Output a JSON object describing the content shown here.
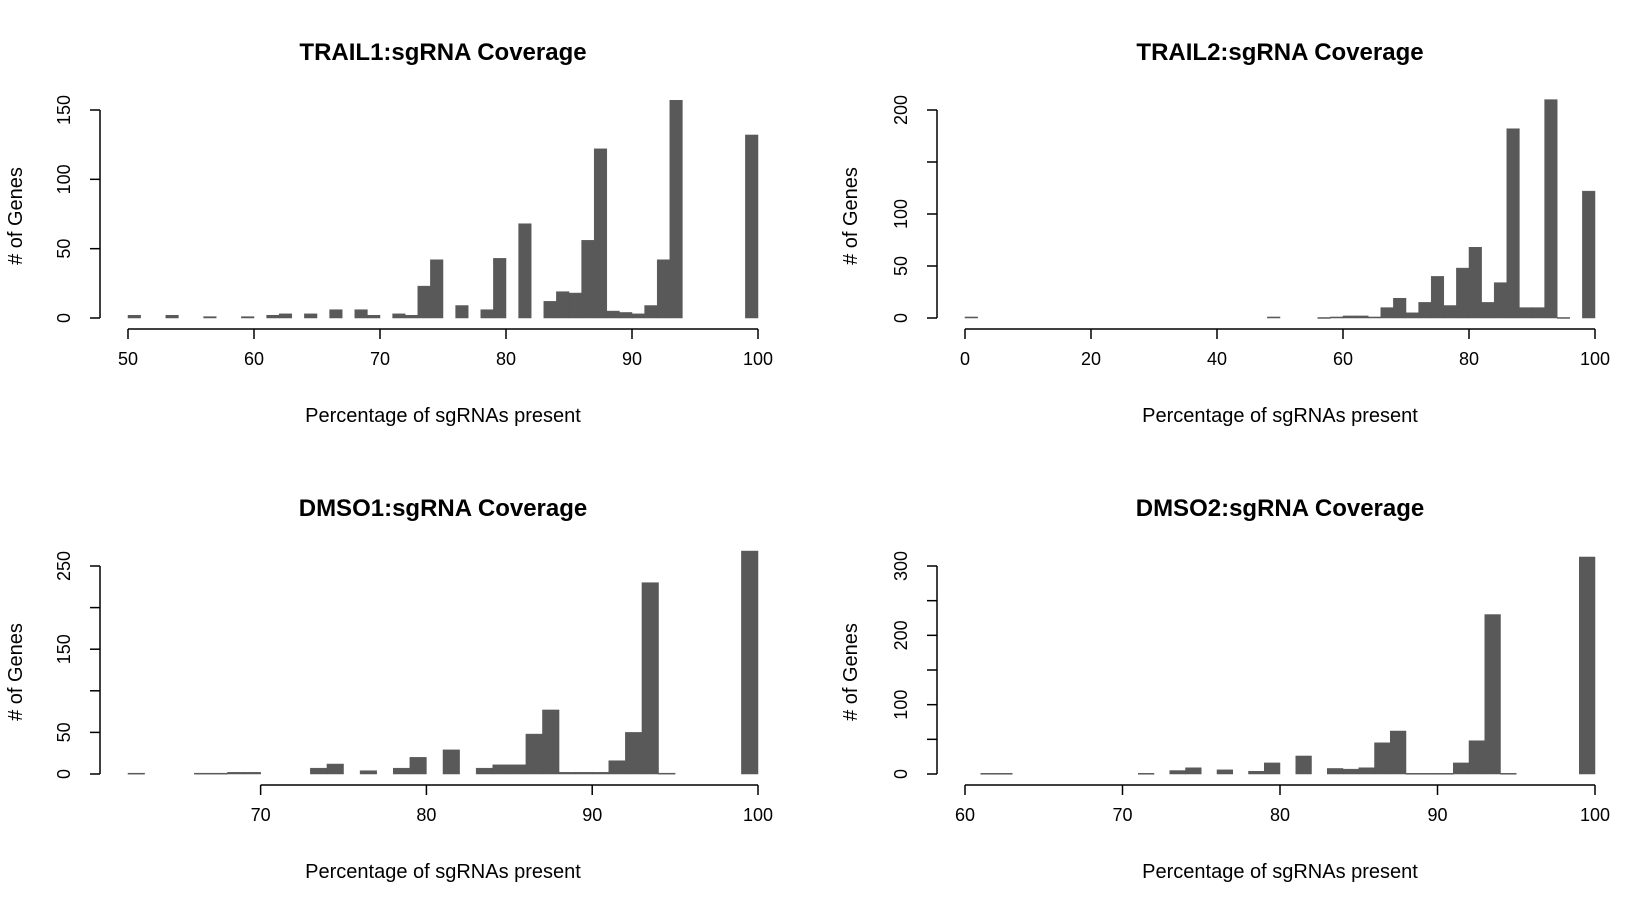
{
  "chart_data": [
    {
      "type": "bar",
      "title": "TRAIL1:sgRNA Coverage",
      "xlabel": "Percentage of sgRNAs present",
      "ylabel": "# of Genes",
      "xlim": [
        50,
        100
      ],
      "ylim": [
        0,
        150
      ],
      "xticks": [
        50,
        60,
        70,
        80,
        90,
        100
      ],
      "yticks": [
        0,
        50,
        100,
        150
      ],
      "bars": [
        {
          "x0": 50.0,
          "x1": 51.0,
          "value": 2
        },
        {
          "x0": 53.0,
          "x1": 54.0,
          "value": 2
        },
        {
          "x0": 56.0,
          "x1": 57.0,
          "value": 1
        },
        {
          "x0": 59.0,
          "x1": 60.0,
          "value": 1
        },
        {
          "x0": 61.0,
          "x1": 62.0,
          "value": 2
        },
        {
          "x0": 62.0,
          "x1": 63.0,
          "value": 3
        },
        {
          "x0": 64.0,
          "x1": 65.0,
          "value": 3
        },
        {
          "x0": 66.0,
          "x1": 67.0,
          "value": 6
        },
        {
          "x0": 68.0,
          "x1": 69.0,
          "value": 6
        },
        {
          "x0": 69.0,
          "x1": 70.0,
          "value": 2
        },
        {
          "x0": 71.0,
          "x1": 72.0,
          "value": 3
        },
        {
          "x0": 72.0,
          "x1": 73.0,
          "value": 2
        },
        {
          "x0": 73.0,
          "x1": 74.0,
          "value": 23
        },
        {
          "x0": 74.0,
          "x1": 75.0,
          "value": 42
        },
        {
          "x0": 76.0,
          "x1": 77.0,
          "value": 9
        },
        {
          "x0": 78.0,
          "x1": 79.0,
          "value": 6
        },
        {
          "x0": 79.0,
          "x1": 80.0,
          "value": 43
        },
        {
          "x0": 81.0,
          "x1": 82.0,
          "value": 68
        },
        {
          "x0": 83.0,
          "x1": 84.0,
          "value": 12
        },
        {
          "x0": 84.0,
          "x1": 85.0,
          "value": 19
        },
        {
          "x0": 85.0,
          "x1": 86.0,
          "value": 18
        },
        {
          "x0": 86.0,
          "x1": 87.0,
          "value": 56
        },
        {
          "x0": 87.0,
          "x1": 88.0,
          "value": 122
        },
        {
          "x0": 88.0,
          "x1": 89.0,
          "value": 5
        },
        {
          "x0": 89.0,
          "x1": 90.0,
          "value": 4
        },
        {
          "x0": 90.0,
          "x1": 91.0,
          "value": 3
        },
        {
          "x0": 91.0,
          "x1": 92.0,
          "value": 9
        },
        {
          "x0": 92.0,
          "x1": 93.0,
          "value": 42
        },
        {
          "x0": 93.0,
          "x1": 94.0,
          "value": 157
        },
        {
          "x0": 99.0,
          "x1": 100.0,
          "value": 132
        }
      ]
    },
    {
      "type": "bar",
      "title": "TRAIL2:sgRNA Coverage",
      "xlabel": "Percentage of sgRNAs present",
      "ylabel": "# of Genes",
      "xlim": [
        0,
        100
      ],
      "ylim": [
        0,
        200
      ],
      "xticks": [
        0,
        20,
        40,
        60,
        80,
        100
      ],
      "yticks": [
        0,
        50,
        100,
        150,
        200
      ],
      "yticklabels": [
        "0",
        "50",
        "100",
        "",
        "200"
      ],
      "bars": [
        {
          "x0": 0,
          "x1": 2,
          "value": 1
        },
        {
          "x0": 48,
          "x1": 50,
          "value": 1
        },
        {
          "x0": 56,
          "x1": 58,
          "value": 0.5
        },
        {
          "x0": 58,
          "x1": 60,
          "value": 1
        },
        {
          "x0": 60,
          "x1": 62,
          "value": 2
        },
        {
          "x0": 62,
          "x1": 64,
          "value": 2
        },
        {
          "x0": 64,
          "x1": 66,
          "value": 1
        },
        {
          "x0": 66,
          "x1": 68,
          "value": 10
        },
        {
          "x0": 68,
          "x1": 70,
          "value": 19
        },
        {
          "x0": 70,
          "x1": 72,
          "value": 5
        },
        {
          "x0": 72,
          "x1": 74,
          "value": 15
        },
        {
          "x0": 74,
          "x1": 76,
          "value": 40
        },
        {
          "x0": 76,
          "x1": 78,
          "value": 12
        },
        {
          "x0": 78,
          "x1": 80,
          "value": 48
        },
        {
          "x0": 80,
          "x1": 82,
          "value": 68
        },
        {
          "x0": 82,
          "x1": 84,
          "value": 15
        },
        {
          "x0": 84,
          "x1": 86,
          "value": 34
        },
        {
          "x0": 86,
          "x1": 88,
          "value": 182
        },
        {
          "x0": 88,
          "x1": 90,
          "value": 10
        },
        {
          "x0": 90,
          "x1": 92,
          "value": 10
        },
        {
          "x0": 92,
          "x1": 94,
          "value": 210
        },
        {
          "x0": 94,
          "x1": 96,
          "value": 0.5
        },
        {
          "x0": 98,
          "x1": 100,
          "value": 122
        }
      ]
    },
    {
      "type": "bar",
      "title": "DMSO1:sgRNA Coverage",
      "xlabel": "Percentage of sgRNAs present",
      "ylabel": "# of Genes",
      "xlim": [
        70,
        100
      ],
      "ylim": [
        0,
        250
      ],
      "xticks": [
        70,
        80,
        90,
        100
      ],
      "yticks": [
        0,
        50,
        100,
        150,
        200,
        250
      ],
      "yticklabels": [
        "0",
        "50",
        "",
        "150",
        "",
        "250"
      ],
      "bars": [
        {
          "x0": 62,
          "x1": 63,
          "value": 1
        },
        {
          "x0": 66,
          "x1": 67,
          "value": 1
        },
        {
          "x0": 67,
          "x1": 68,
          "value": 1
        },
        {
          "x0": 68,
          "x1": 69,
          "value": 2
        },
        {
          "x0": 69,
          "x1": 70,
          "value": 2
        },
        {
          "x0": 73,
          "x1": 74,
          "value": 7
        },
        {
          "x0": 74,
          "x1": 75,
          "value": 12
        },
        {
          "x0": 76,
          "x1": 77,
          "value": 4
        },
        {
          "x0": 78,
          "x1": 79,
          "value": 7
        },
        {
          "x0": 79,
          "x1": 80,
          "value": 20
        },
        {
          "x0": 81,
          "x1": 82,
          "value": 29
        },
        {
          "x0": 83,
          "x1": 84,
          "value": 7
        },
        {
          "x0": 84,
          "x1": 85,
          "value": 11
        },
        {
          "x0": 85,
          "x1": 86,
          "value": 11
        },
        {
          "x0": 86,
          "x1": 87,
          "value": 48
        },
        {
          "x0": 87,
          "x1": 88,
          "value": 77
        },
        {
          "x0": 88,
          "x1": 89,
          "value": 2
        },
        {
          "x0": 89,
          "x1": 90,
          "value": 2
        },
        {
          "x0": 90,
          "x1": 91,
          "value": 2
        },
        {
          "x0": 91,
          "x1": 92,
          "value": 16
        },
        {
          "x0": 92,
          "x1": 93,
          "value": 50
        },
        {
          "x0": 93,
          "x1": 94,
          "value": 230
        },
        {
          "x0": 94,
          "x1": 95,
          "value": 1
        },
        {
          "x0": 99,
          "x1": 100,
          "value": 268
        }
      ]
    },
    {
      "type": "bar",
      "title": "DMSO2:sgRNA Coverage",
      "xlabel": "Percentage of sgRNAs present",
      "ylabel": "# of Genes",
      "xlim": [
        60,
        100
      ],
      "ylim": [
        0,
        300
      ],
      "xticks": [
        60,
        70,
        80,
        90,
        100
      ],
      "yticks": [
        0,
        50,
        100,
        150,
        200,
        250,
        300
      ],
      "yticklabels": [
        "0",
        "",
        "100",
        "",
        "200",
        "",
        "300"
      ],
      "bars": [
        {
          "x0": 61,
          "x1": 62,
          "value": 1
        },
        {
          "x0": 62,
          "x1": 63,
          "value": 1
        },
        {
          "x0": 71,
          "x1": 72,
          "value": 1
        },
        {
          "x0": 73,
          "x1": 74,
          "value": 5
        },
        {
          "x0": 74,
          "x1": 75,
          "value": 9
        },
        {
          "x0": 76,
          "x1": 77,
          "value": 6
        },
        {
          "x0": 78,
          "x1": 79,
          "value": 4
        },
        {
          "x0": 79,
          "x1": 80,
          "value": 16
        },
        {
          "x0": 81,
          "x1": 82,
          "value": 26
        },
        {
          "x0": 83,
          "x1": 84,
          "value": 8
        },
        {
          "x0": 84,
          "x1": 85,
          "value": 7
        },
        {
          "x0": 85,
          "x1": 86,
          "value": 9
        },
        {
          "x0": 86,
          "x1": 87,
          "value": 45
        },
        {
          "x0": 87,
          "x1": 88,
          "value": 62
        },
        {
          "x0": 88,
          "x1": 89,
          "value": 1
        },
        {
          "x0": 89,
          "x1": 90,
          "value": 1
        },
        {
          "x0": 90,
          "x1": 91,
          "value": 1
        },
        {
          "x0": 91,
          "x1": 92,
          "value": 16
        },
        {
          "x0": 92,
          "x1": 93,
          "value": 48
        },
        {
          "x0": 93,
          "x1": 94,
          "value": 230
        },
        {
          "x0": 94,
          "x1": 95,
          "value": 1
        },
        {
          "x0": 99,
          "x1": 100,
          "value": 313
        }
      ]
    }
  ],
  "colors": {
    "bar_fill": "#595959",
    "axis": "#000000",
    "background": "#ffffff"
  }
}
